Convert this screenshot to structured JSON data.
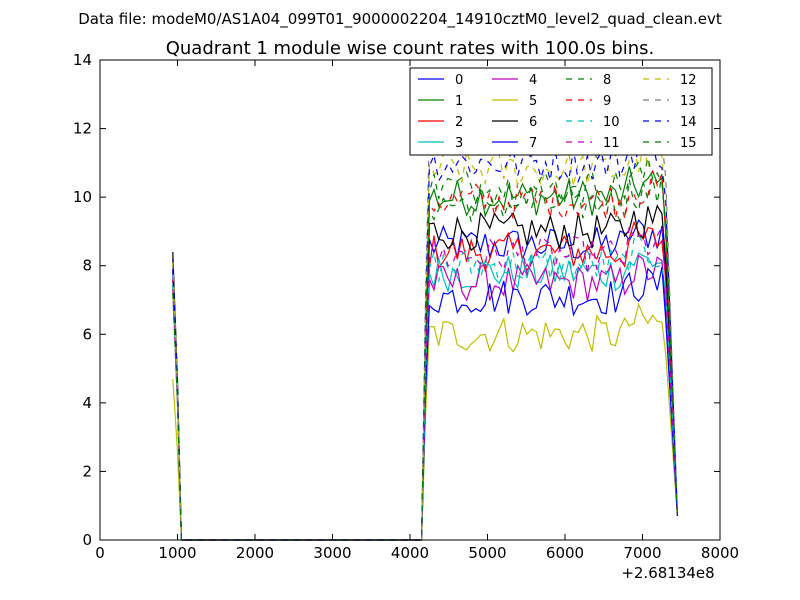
{
  "suptitle": "Data file: modeM0/AS1A04_099T01_9000002204_14910cztM0_level2_quad_clean.evt",
  "chart_data": {
    "type": "line",
    "title": "Quadrant 1 module wise count rates with 100.0s bins.",
    "xlabel": "",
    "ylabel": "",
    "xlim": [
      0,
      8000
    ],
    "ylim": [
      0,
      14
    ],
    "x_offset_label": "+2.68134e8",
    "xticks": [
      0,
      1000,
      2000,
      3000,
      4000,
      5000,
      6000,
      7000,
      8000
    ],
    "yticks": [
      0,
      2,
      4,
      6,
      8,
      10,
      12,
      14
    ],
    "grid": false,
    "legend": {
      "position": "top-right",
      "columns": 4
    },
    "series": [
      {
        "name": "0",
        "color": "#0000ff",
        "dash": "solid",
        "high": 8.2,
        "lvl": 8.6
      },
      {
        "name": "1",
        "color": "#008000",
        "dash": "solid",
        "high": 8.1,
        "lvl": 10.0
      },
      {
        "name": "2",
        "color": "#ff0000",
        "dash": "solid",
        "high": 7.9,
        "lvl": 8.4
      },
      {
        "name": "3",
        "color": "#00bfbf",
        "dash": "solid",
        "high": 7.8,
        "lvl": 7.8
      },
      {
        "name": "4",
        "color": "#bf00bf",
        "dash": "solid",
        "high": 7.6,
        "lvl": 7.5
      },
      {
        "name": "5",
        "color": "#bfbf00",
        "dash": "solid",
        "high": 4.7,
        "lvl": 6.0
      },
      {
        "name": "6",
        "color": "#000000",
        "dash": "solid",
        "high": 8.4,
        "lvl": 9.0
      },
      {
        "name": "7",
        "color": "#0000ff",
        "dash": "solid",
        "high": 7.7,
        "lvl": 7.1
      },
      {
        "name": "8",
        "color": "#008000",
        "dash": "dashed",
        "high": 7.4,
        "lvl": 9.8
      },
      {
        "name": "9",
        "color": "#ff0000",
        "dash": "dashed",
        "high": 7.6,
        "lvl": 9.9
      },
      {
        "name": "10",
        "color": "#00bfbf",
        "dash": "dashed",
        "high": 7.5,
        "lvl": 8.0
      },
      {
        "name": "11",
        "color": "#bf00bf",
        "dash": "dashed",
        "high": 7.3,
        "lvl": 8.3
      },
      {
        "name": "12",
        "color": "#bfbf00",
        "dash": "dashed",
        "high": 8.1,
        "lvl": 10.8
      },
      {
        "name": "13",
        "color": "#808080",
        "dash": "dashed",
        "high": 8.0,
        "lvl": 11.7
      },
      {
        "name": "14",
        "color": "#0000ff",
        "dash": "dashed",
        "high": 7.9,
        "lvl": 11.0
      },
      {
        "name": "15",
        "color": "#008000",
        "dash": "dashed",
        "high": 7.2,
        "lvl": 10.3
      }
    ],
    "gap_interval": [
      1050,
      4150
    ],
    "active_interval": [
      4150,
      7450
    ]
  }
}
